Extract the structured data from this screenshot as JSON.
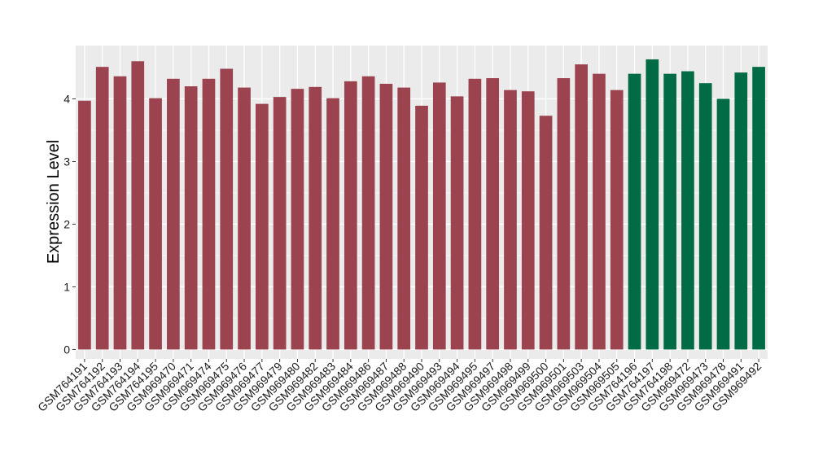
{
  "chart_data": {
    "type": "bar",
    "title": "",
    "xlabel": "",
    "ylabel": "Expression Level",
    "ylim": [
      -0.15,
      4.85
    ],
    "yticks": [
      0,
      1,
      2,
      3,
      4
    ],
    "grid": true,
    "categories": [
      "GSM764191",
      "GSM764192",
      "GSM764193",
      "GSM764194",
      "GSM764195",
      "GSM969470",
      "GSM969471",
      "GSM969474",
      "GSM969475",
      "GSM969476",
      "GSM969477",
      "GSM969479",
      "GSM969480",
      "GSM969482",
      "GSM969483",
      "GSM969484",
      "GSM969486",
      "GSM969487",
      "GSM969488",
      "GSM969490",
      "GSM969493",
      "GSM969494",
      "GSM969495",
      "GSM969497",
      "GSM969498",
      "GSM969499",
      "GSM969500",
      "GSM969501",
      "GSM969503",
      "GSM969504",
      "GSM969505",
      "GSM764196",
      "GSM764197",
      "GSM764198",
      "GSM969472",
      "GSM969473",
      "GSM969478",
      "GSM969491",
      "GSM969492"
    ],
    "values": [
      3.97,
      4.51,
      4.36,
      4.6,
      4.01,
      4.32,
      4.2,
      4.32,
      4.48,
      4.18,
      3.92,
      4.03,
      4.16,
      4.19,
      4.01,
      4.28,
      4.36,
      4.24,
      4.18,
      3.89,
      4.26,
      4.04,
      4.32,
      4.33,
      4.14,
      4.12,
      3.73,
      4.33,
      4.55,
      4.4,
      4.14,
      4.4,
      4.63,
      4.4,
      4.44,
      4.25,
      4.0,
      4.42,
      4.51
    ],
    "groups": [
      0,
      0,
      0,
      0,
      0,
      0,
      0,
      0,
      0,
      0,
      0,
      0,
      0,
      0,
      0,
      0,
      0,
      0,
      0,
      0,
      0,
      0,
      0,
      0,
      0,
      0,
      0,
      0,
      0,
      0,
      0,
      1,
      1,
      1,
      1,
      1,
      1,
      1,
      1
    ],
    "group_colors": [
      "#9b4450",
      "#006b45"
    ]
  }
}
